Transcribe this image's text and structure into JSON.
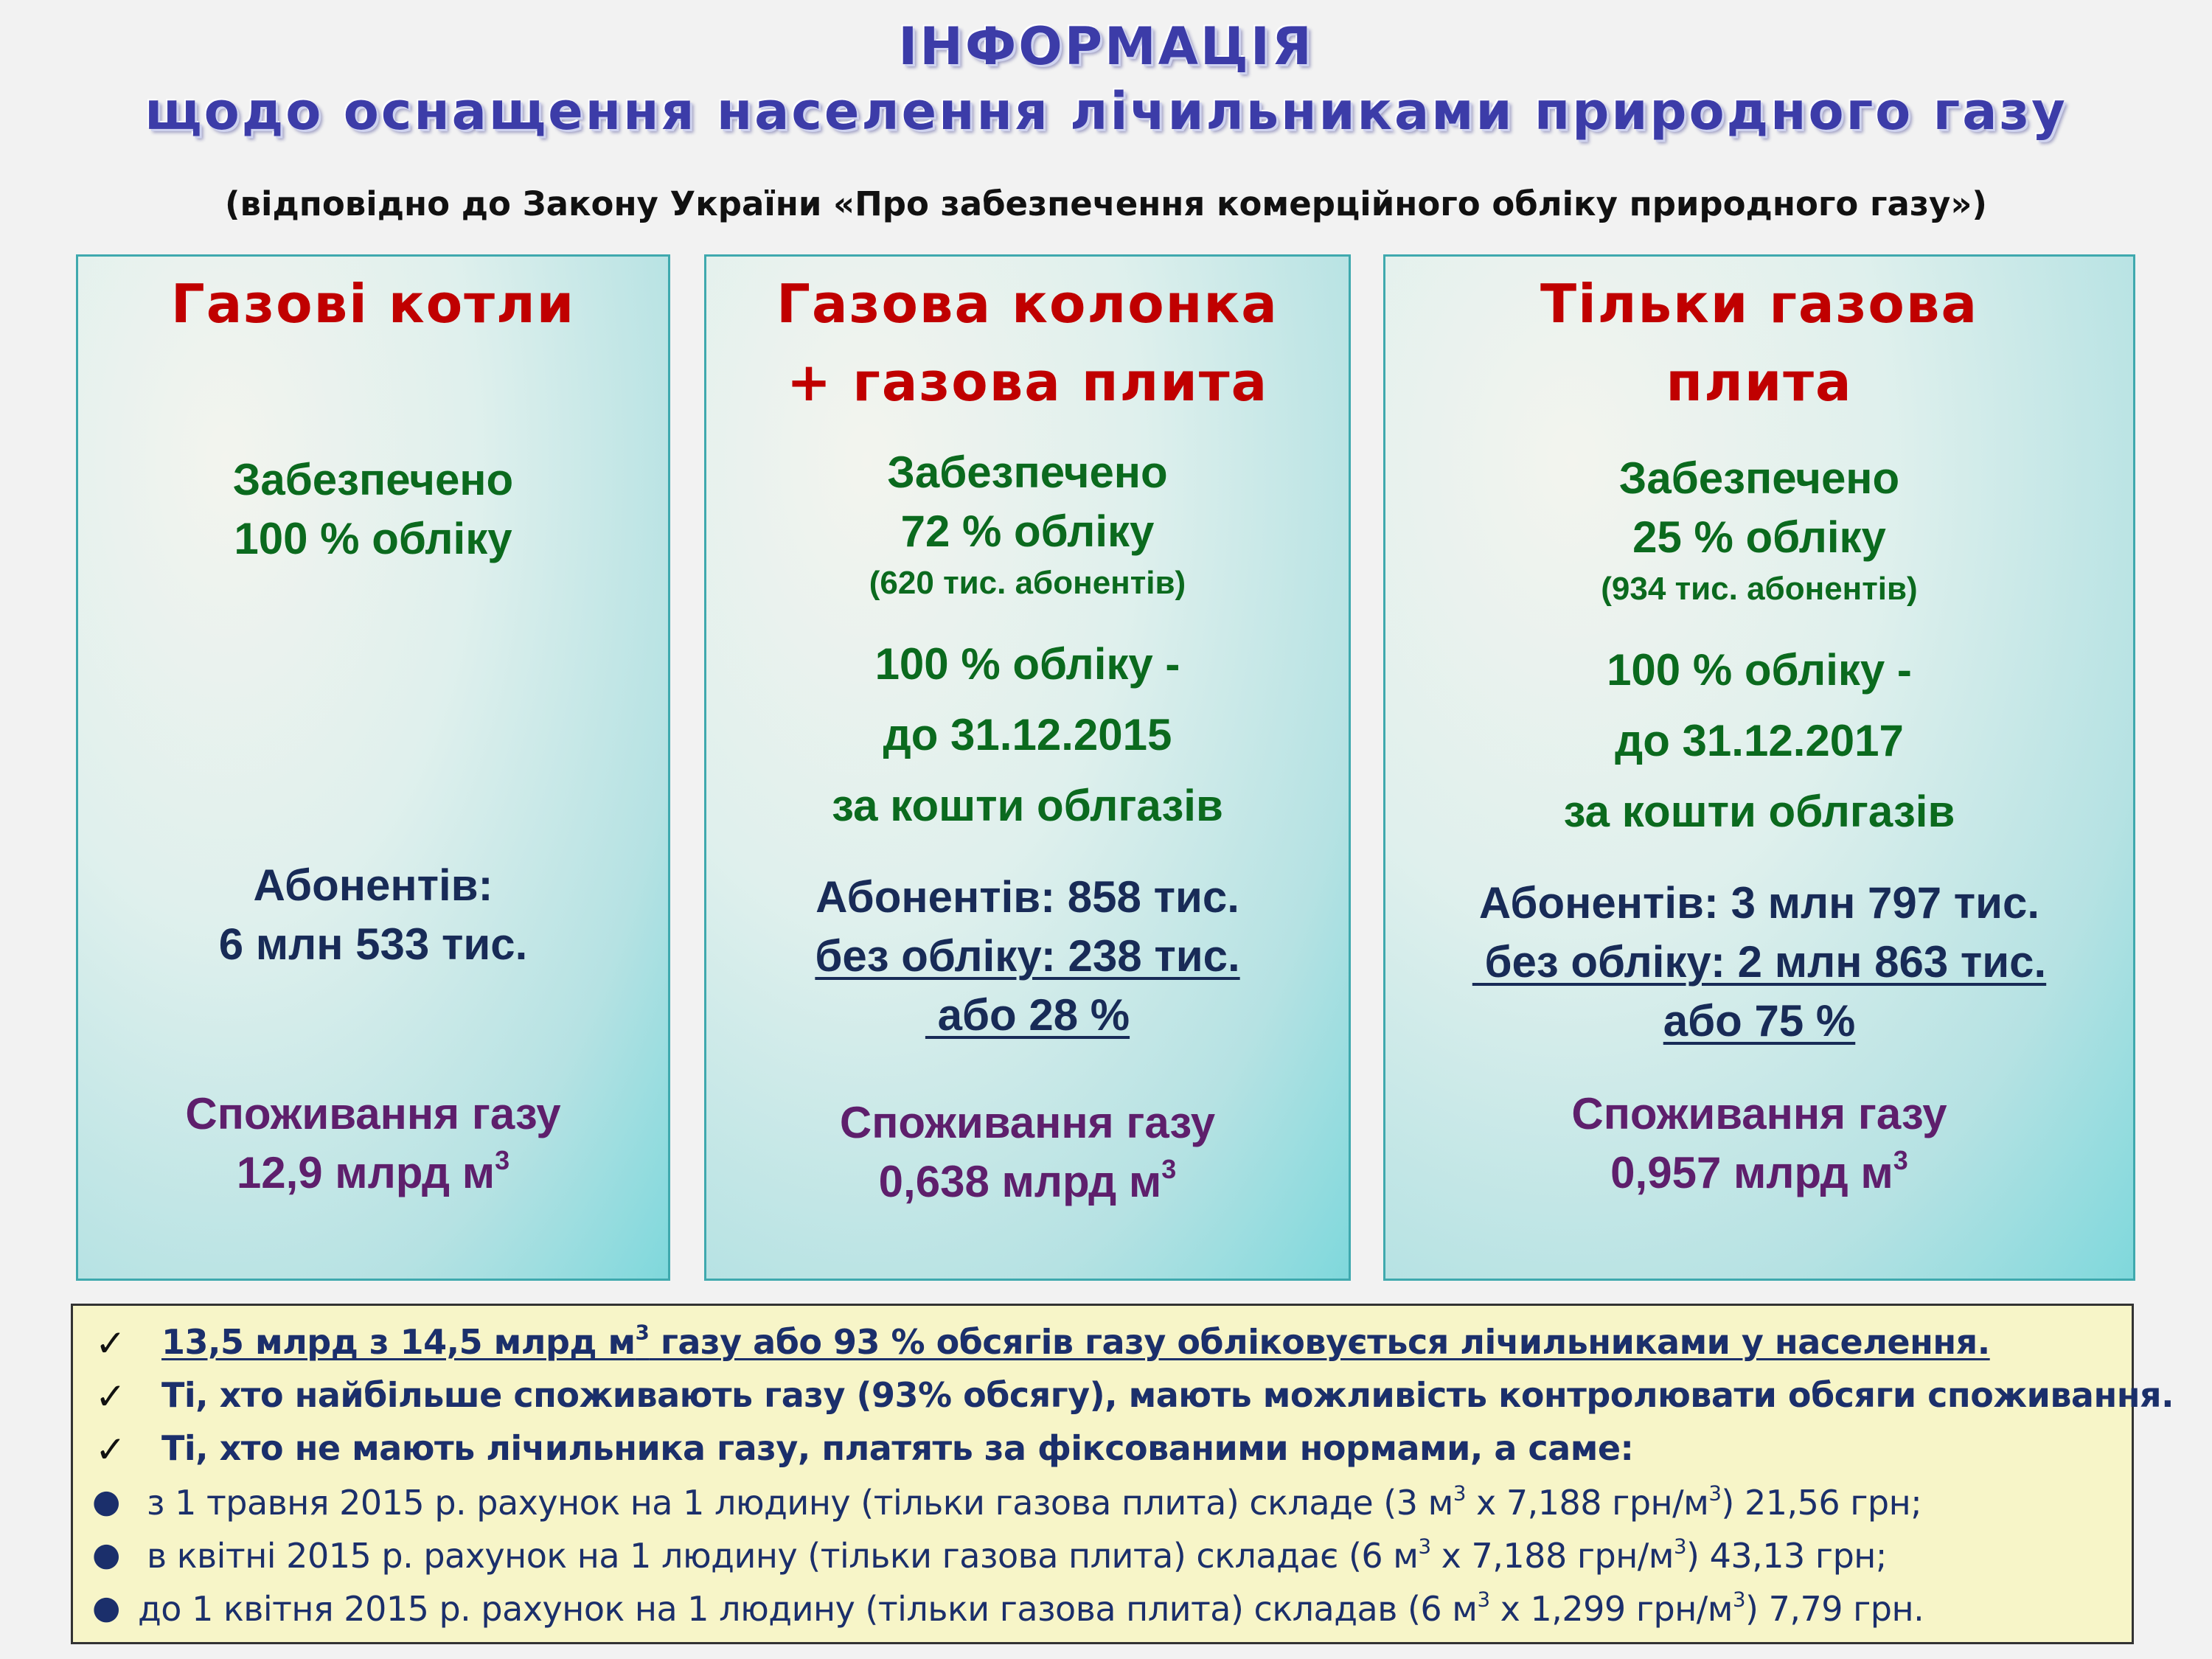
{
  "header": {
    "title": "ІНФОРМАЦІЯ",
    "subtitle": "щодо оснащення населення лічильниками природного газу",
    "law_note": "(відповідно до Закону України «Про забезпечення комерційного обліку природного газу»)"
  },
  "panels": [
    {
      "title_lines": [
        "Газові котли"
      ],
      "provided_label": "Забезпечено",
      "provided_value": "100 % обліку",
      "subscribers_label": "Абонентів:",
      "subscribers_value": "6 млн 533 тис.",
      "consumption_label": "Споживання газу",
      "consumption_value": "12,9 млрд м",
      "consumption_unit_sup": "3"
    },
    {
      "title_lines": [
        "Газова колонка",
        "+ газова плита"
      ],
      "provided_label": "Забезпечено",
      "provided_value": "72 % обліку",
      "provided_note": "(620 тис. абонентів)",
      "plan_lines": [
        "100 % обліку -",
        "до 31.12.2015",
        "за кошти облгазів"
      ],
      "subscribers_line": "Абонентів: 858 тис.",
      "without_line": "без обліку: 238 тис.",
      "without_percent": " або 28 %",
      "consumption_label": "Споживання газу",
      "consumption_value": "0,638 млрд м",
      "consumption_unit_sup": "3"
    },
    {
      "title_lines": [
        "Тільки газова",
        "плита"
      ],
      "provided_label": "Забезпечено",
      "provided_value": "25 % обліку",
      "provided_note": "(934 тис. абонентів)",
      "plan_lines": [
        "100 % обліку -",
        "до 31.12.2017",
        "за кошти облгазів"
      ],
      "subscribers_line": "Абонентів: 3 млн 797 тис.",
      "without_line": " без обліку: 2 млн 863 тис.",
      "without_percent": "або 75 %",
      "consumption_label": "Споживання газу",
      "consumption_value": "0,957 млрд м",
      "consumption_unit_sup": "3"
    }
  ],
  "notes": {
    "check_mark": "✓",
    "bullet_mark": "●",
    "c1_a": "13,5 млрд з 14,5 млрд м",
    "c1_sup": "3",
    "c1_b": " газу або 93 % обсягів газу обліковується лічильниками у населення.",
    "c2": "Ті, хто найбільше споживають газу (93% обсягу), мають можливість контролювати обсяги споживання.",
    "c3": "Ті, хто не мають лічильника газу, платять за фіксованими нормами, а саме:",
    "b1_a": "з 1 травня 2015 р. рахунок на 1 людину (тільки газова плита) складе (3 м",
    "b1_b": " х 7,188 грн/м",
    "b1_c": ") 21,56 грн;",
    "b2_a": "в квітні 2015 р. рахунок на 1 людину (тільки газова плита) складає (6 м",
    "b2_b": " х 7,188 грн/м",
    "b2_c": ") 43,13 грн;",
    "b3_a": "до 1 квітня 2015 р. рахунок на 1 людину (тільки газова плита) складав (6 м",
    "b3_b": " х 1,299 грн/м",
    "b3_c": ") 7,79 грн.",
    "sup3": "3"
  },
  "colors": {
    "title": "#3c3ca8",
    "panel_title": "#c00000",
    "green": "#0b6a1e",
    "navy": "#182b57",
    "purple": "#5e1f6c",
    "note_bg": "#f7f5c8"
  }
}
